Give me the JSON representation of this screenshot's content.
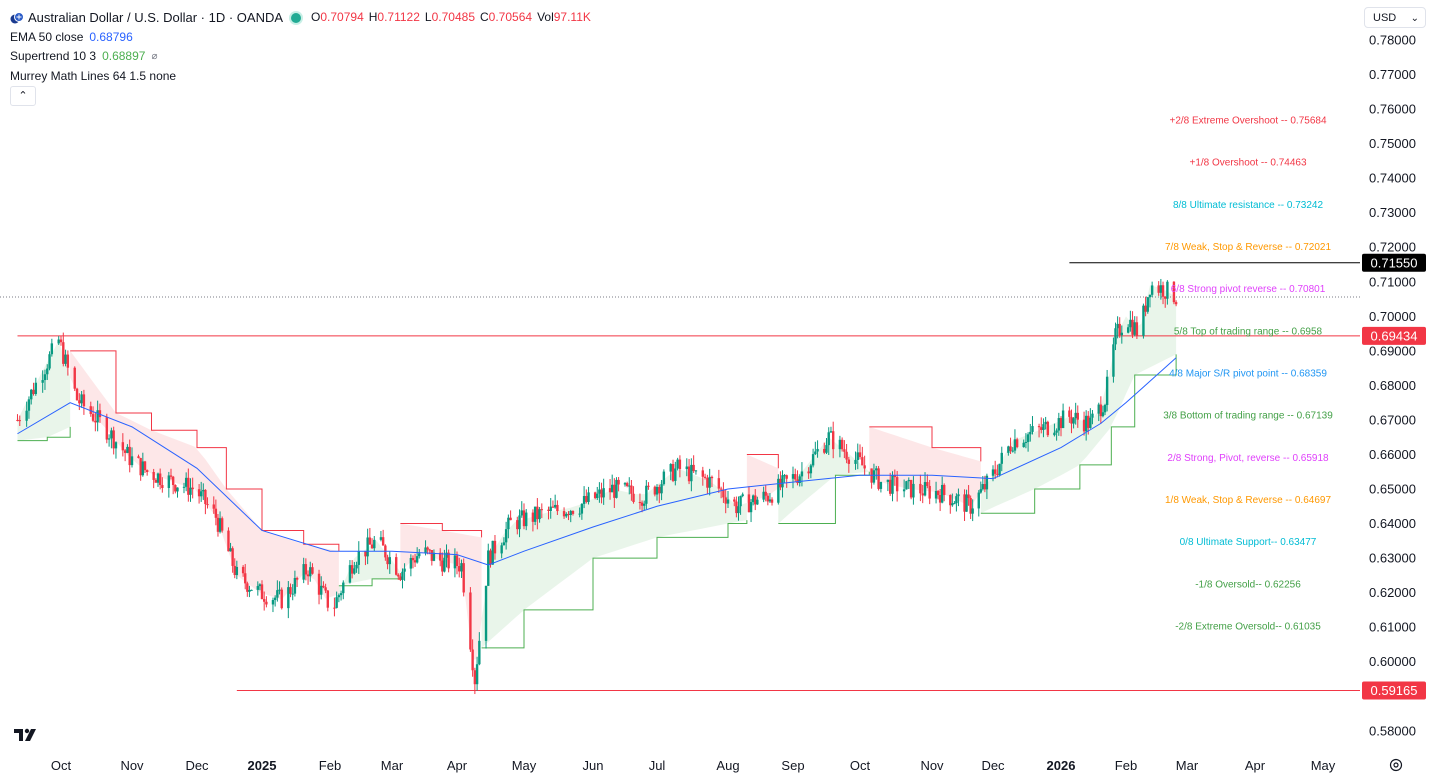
{
  "legend": {
    "title": "Australian Dollar / U.S. Dollar · 1D · OANDA",
    "open_label": "O",
    "open_value": "0.70794",
    "high_label": "H",
    "high_value": "0.71122",
    "low_label": "L",
    "low_value": "0.70485",
    "close_label": "C",
    "close_value": "0.70564",
    "vol_label": "Vol",
    "vol_value": "97.11K",
    "ema_name": "EMA 50 close",
    "ema_value": "0.68796",
    "supertrend_name": "Supertrend 10 3",
    "supertrend_value": "0.68897",
    "murrey_name": "Murrey Math Lines 64 1.5 none",
    "collapse_icon": "chevron-up-icon"
  },
  "currency_selector": {
    "label": "USD",
    "icon": "chevron-down-icon"
  },
  "colors": {
    "up": "#089981",
    "down": "#f23645",
    "ema": "#2962ff",
    "supertrend_up": "#4caf50",
    "supertrend_down": "#f23645",
    "support_line": "#f23645",
    "resistance_line": "#000000"
  },
  "chart_data": {
    "type": "candlestick",
    "symbol": "Australian Dollar / U.S. Dollar",
    "interval": "1D",
    "source": "OANDA",
    "x_ticks": [
      {
        "label": "Oct",
        "date": "2024-10-01",
        "bold": false
      },
      {
        "label": "Nov",
        "date": "2024-11-01",
        "bold": false
      },
      {
        "label": "Dec",
        "date": "2024-12-01",
        "bold": false
      },
      {
        "label": "2025",
        "date": "2025-01-01",
        "bold": true
      },
      {
        "label": "Feb",
        "date": "2025-02-01",
        "bold": false
      },
      {
        "label": "Mar",
        "date": "2025-03-01",
        "bold": false
      },
      {
        "label": "Apr",
        "date": "2025-04-01",
        "bold": false
      },
      {
        "label": "May",
        "date": "2025-05-01",
        "bold": false
      },
      {
        "label": "Jun",
        "date": "2025-06-01",
        "bold": false
      },
      {
        "label": "Jul",
        "date": "2025-07-01",
        "bold": false
      },
      {
        "label": "Aug",
        "date": "2025-08-01",
        "bold": false
      },
      {
        "label": "Sep",
        "date": "2025-09-01",
        "bold": false
      },
      {
        "label": "Oct",
        "date": "2025-10-01",
        "bold": false
      },
      {
        "label": "Nov",
        "date": "2025-11-01",
        "bold": false
      },
      {
        "label": "Dec",
        "date": "2025-12-01",
        "bold": false
      },
      {
        "label": "2026",
        "date": "2026-01-01",
        "bold": true
      },
      {
        "label": "Feb",
        "date": "2026-02-01",
        "bold": false
      },
      {
        "label": "Mar",
        "date": "2026-03-01",
        "bold": false
      },
      {
        "label": "Apr",
        "date": "2026-04-01",
        "bold": false
      },
      {
        "label": "May",
        "date": "2026-05-01",
        "bold": false
      }
    ],
    "y_ticks": [
      "0.78000",
      "0.77000",
      "0.76000",
      "0.75000",
      "0.74000",
      "0.73000",
      "0.72000",
      "0.71000",
      "0.70000",
      "0.69000",
      "0.68000",
      "0.67000",
      "0.66000",
      "0.65000",
      "0.64000",
      "0.63000",
      "0.62000",
      "0.61000",
      "0.60000",
      "0.58000"
    ],
    "ylim": [
      0.578,
      0.784
    ],
    "price_path": [
      [
        "2024-09-12",
        0.67
      ],
      [
        "2024-09-22",
        0.683
      ],
      [
        "2024-09-30",
        0.693
      ],
      [
        "2024-10-08",
        0.676
      ],
      [
        "2024-10-20",
        0.668
      ],
      [
        "2024-10-31",
        0.659
      ],
      [
        "2024-11-08",
        0.655
      ],
      [
        "2024-11-20",
        0.652
      ],
      [
        "2024-11-30",
        0.65
      ],
      [
        "2024-12-10",
        0.642
      ],
      [
        "2024-12-20",
        0.625
      ],
      [
        "2024-12-31",
        0.62
      ],
      [
        "2025-01-10",
        0.618
      ],
      [
        "2025-01-22",
        0.627
      ],
      [
        "2025-02-02",
        0.615
      ],
      [
        "2025-02-12",
        0.63
      ],
      [
        "2025-02-22",
        0.635
      ],
      [
        "2025-03-05",
        0.626
      ],
      [
        "2025-03-15",
        0.632
      ],
      [
        "2025-03-25",
        0.629
      ],
      [
        "2025-04-03",
        0.628
      ],
      [
        "2025-04-09",
        0.595
      ],
      [
        "2025-04-15",
        0.63
      ],
      [
        "2025-04-25",
        0.64
      ],
      [
        "2025-05-10",
        0.643
      ],
      [
        "2025-05-25",
        0.645
      ],
      [
        "2025-06-10",
        0.65
      ],
      [
        "2025-06-25",
        0.648
      ],
      [
        "2025-07-10",
        0.656
      ],
      [
        "2025-07-25",
        0.652
      ],
      [
        "2025-08-05",
        0.645
      ],
      [
        "2025-08-20",
        0.648
      ],
      [
        "2025-09-05",
        0.655
      ],
      [
        "2025-09-17",
        0.665
      ],
      [
        "2025-09-30",
        0.658
      ],
      [
        "2025-10-10",
        0.652
      ],
      [
        "2025-10-22",
        0.65
      ],
      [
        "2025-11-05",
        0.649
      ],
      [
        "2025-11-20",
        0.645
      ],
      [
        "2025-11-30",
        0.653
      ],
      [
        "2025-12-10",
        0.664
      ],
      [
        "2025-12-22",
        0.667
      ],
      [
        "2026-01-05",
        0.671
      ],
      [
        "2026-01-15",
        0.669
      ],
      [
        "2026-01-22",
        0.676
      ],
      [
        "2026-01-27",
        0.694
      ],
      [
        "2026-02-01",
        0.7
      ],
      [
        "2026-02-07",
        0.695
      ],
      [
        "2026-02-12",
        0.709
      ],
      [
        "2026-02-18",
        0.708
      ],
      [
        "2026-02-24",
        0.7056
      ]
    ],
    "ema50_path": [
      [
        "2024-09-12",
        0.666
      ],
      [
        "2024-10-05",
        0.675
      ],
      [
        "2024-11-01",
        0.668
      ],
      [
        "2024-12-01",
        0.656
      ],
      [
        "2025-01-01",
        0.638
      ],
      [
        "2025-02-01",
        0.632
      ],
      [
        "2025-03-01",
        0.632
      ],
      [
        "2025-04-01",
        0.631
      ],
      [
        "2025-04-15",
        0.628
      ],
      [
        "2025-05-01",
        0.632
      ],
      [
        "2025-06-01",
        0.639
      ],
      [
        "2025-07-01",
        0.645
      ],
      [
        "2025-08-01",
        0.65
      ],
      [
        "2025-09-01",
        0.652
      ],
      [
        "2025-10-01",
        0.654
      ],
      [
        "2025-11-01",
        0.654
      ],
      [
        "2025-12-01",
        0.653
      ],
      [
        "2026-01-01",
        0.662
      ],
      [
        "2026-01-20",
        0.669
      ],
      [
        "2026-02-01",
        0.675
      ],
      [
        "2026-02-24",
        0.688
      ]
    ],
    "supertrend_segments": [
      {
        "trend": "up",
        "points": [
          [
            "2024-09-12",
            0.664
          ],
          [
            "2024-09-25",
            0.665
          ],
          [
            "2024-10-05",
            0.668
          ]
        ]
      },
      {
        "trend": "down",
        "points": [
          [
            "2024-10-05",
            0.69
          ],
          [
            "2024-10-25",
            0.672
          ],
          [
            "2024-11-10",
            0.667
          ],
          [
            "2024-12-01",
            0.662
          ],
          [
            "2024-12-15",
            0.65
          ],
          [
            "2025-01-01",
            0.638
          ],
          [
            "2025-01-20",
            0.634
          ],
          [
            "2025-02-05",
            0.632
          ]
        ]
      },
      {
        "trend": "up",
        "points": [
          [
            "2025-02-05",
            0.622
          ],
          [
            "2025-02-20",
            0.624
          ],
          [
            "2025-03-05",
            0.624
          ]
        ]
      },
      {
        "trend": "down",
        "points": [
          [
            "2025-03-05",
            0.64
          ],
          [
            "2025-03-25",
            0.638
          ],
          [
            "2025-04-12",
            0.636
          ]
        ]
      },
      {
        "trend": "up",
        "points": [
          [
            "2025-04-12",
            0.604
          ],
          [
            "2025-05-01",
            0.615
          ],
          [
            "2025-06-01",
            0.63
          ],
          [
            "2025-07-01",
            0.636
          ],
          [
            "2025-08-01",
            0.64
          ],
          [
            "2025-08-10",
            0.641
          ]
        ]
      },
      {
        "trend": "down",
        "points": [
          [
            "2025-08-10",
            0.66
          ],
          [
            "2025-08-25",
            0.656
          ]
        ]
      },
      {
        "trend": "up",
        "points": [
          [
            "2025-08-25",
            0.64
          ],
          [
            "2025-09-20",
            0.654
          ],
          [
            "2025-10-05",
            0.655
          ]
        ]
      },
      {
        "trend": "down",
        "points": [
          [
            "2025-10-05",
            0.668
          ],
          [
            "2025-11-01",
            0.662
          ],
          [
            "2025-11-25",
            0.658
          ]
        ]
      },
      {
        "trend": "up",
        "points": [
          [
            "2025-11-25",
            0.643
          ],
          [
            "2025-12-20",
            0.65
          ],
          [
            "2026-01-10",
            0.657
          ],
          [
            "2026-01-25",
            0.668
          ],
          [
            "2026-02-05",
            0.683
          ],
          [
            "2026-02-24",
            0.689
          ]
        ]
      }
    ],
    "horizontal_levels": [
      {
        "price": 0.7155,
        "label": "0.71550",
        "style": "black",
        "from": "2026-01-05"
      },
      {
        "price": 0.69434,
        "label": "0.69434",
        "style": "red",
        "from": "2024-09-12"
      },
      {
        "price": 0.59165,
        "label": "0.59165",
        "style": "red",
        "from": "2024-12-20"
      },
      {
        "price": 0.7056,
        "style": "dotted",
        "from": "2024-09-12"
      }
    ],
    "murrey_lines": [
      {
        "text": "+2/8 Extreme Overshoot --  0.75684",
        "price": 0.75684,
        "color": "#f23645"
      },
      {
        "text": "+1/8 Overshoot --  0.74463",
        "price": 0.74463,
        "color": "#f23645"
      },
      {
        "text": "8/8 Ultimate resistance --  0.73242",
        "price": 0.73242,
        "color": "#00bcd4"
      },
      {
        "text": "7/8 Weak, Stop & Reverse --  0.72021",
        "price": 0.72021,
        "color": "#ff9800"
      },
      {
        "text": "6/8 Strong pivot reverse --  0.70801",
        "price": 0.70801,
        "color": "#e040fb"
      },
      {
        "text": "5/8 Top of trading range --  0.6958",
        "price": 0.6958,
        "color": "#43a047"
      },
      {
        "text": "4/8 Major S/R pivot point --  0.68359",
        "price": 0.68359,
        "color": "#2196f3"
      },
      {
        "text": "3/8 Bottom of trading range --  0.67139",
        "price": 0.67139,
        "color": "#43a047"
      },
      {
        "text": "2/8 Strong, Pivot, reverse --  0.65918",
        "price": 0.65918,
        "color": "#e040fb"
      },
      {
        "text": "1/8 Weak, Stop & Reverse --  0.64697",
        "price": 0.64697,
        "color": "#ff9800"
      },
      {
        "text": "0/8 Ultimate Support--  0.63477",
        "price": 0.63477,
        "color": "#00bcd4"
      },
      {
        "text": "-1/8 Oversold--  0.62256",
        "price": 0.62256,
        "color": "#43a047"
      },
      {
        "text": "-2/8 Extreme Oversold--  0.61035",
        "price": 0.61035,
        "color": "#43a047"
      }
    ]
  }
}
